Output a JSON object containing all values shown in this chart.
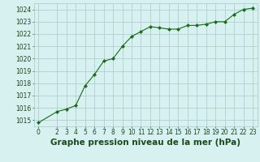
{
  "x": [
    0,
    2,
    3,
    4,
    5,
    6,
    7,
    8,
    9,
    10,
    11,
    12,
    13,
    14,
    15,
    16,
    17,
    18,
    19,
    20,
    21,
    22,
    23
  ],
  "y": [
    1014.8,
    1015.7,
    1015.9,
    1016.2,
    1017.8,
    1018.7,
    1019.8,
    1020.0,
    1021.0,
    1021.8,
    1022.2,
    1022.6,
    1022.5,
    1022.4,
    1022.4,
    1022.7,
    1022.7,
    1022.8,
    1023.0,
    1023.0,
    1023.6,
    1024.0,
    1024.1
  ],
  "line_color": "#1a6b1a",
  "marker": "D",
  "marker_size": 2.0,
  "bg_color": "#d7f0f0",
  "grid_color": "#a8c8c8",
  "title": "Graphe pression niveau de la mer (hPa)",
  "title_fontsize": 7.5,
  "title_color": "#1a4a1a",
  "ylim": [
    1014.5,
    1024.5
  ],
  "xlim": [
    -0.5,
    23.5
  ],
  "yticks": [
    1015,
    1016,
    1017,
    1018,
    1019,
    1020,
    1021,
    1022,
    1023,
    1024
  ],
  "xticks": [
    0,
    2,
    3,
    4,
    5,
    6,
    7,
    8,
    9,
    10,
    11,
    12,
    13,
    14,
    15,
    16,
    17,
    18,
    19,
    20,
    21,
    22,
    23
  ],
  "tick_fontsize": 5.5,
  "tick_color": "#1a4a1a",
  "linewidth": 0.8
}
